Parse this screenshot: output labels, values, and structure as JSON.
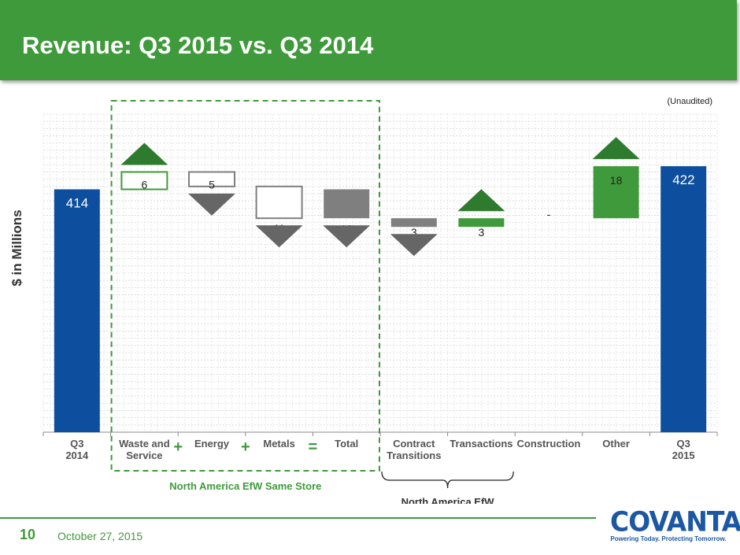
{
  "header": {
    "title": "Revenue: Q3 2015 vs. Q3 2014"
  },
  "note": "(Unaudited)",
  "footer": {
    "page_number": "10",
    "date": "October 27, 2015"
  },
  "logo": {
    "wordmark": "COVANTA",
    "tagline": "Powering Today. Protecting Tomorrow."
  },
  "colors": {
    "header_green": "#3f9a3b",
    "total_blue": "#0d4f9e",
    "increase_green": "#3f9a3b",
    "decrease_gray": "#7f7f7f",
    "arrow_up": "#2e7a2e",
    "arrow_down": "#666666"
  },
  "chart_data": {
    "type": "waterfall",
    "ylabel": "$ in Millions",
    "ylim": [
      330,
      440
    ],
    "grid": true,
    "categories": [
      "Q3\n2014",
      "Waste and\nService",
      "Energy",
      "Metals",
      "Total",
      "Contract\nTransitions",
      "Transactions",
      "Construction",
      "Other",
      "Q3\n2015"
    ],
    "bars": [
      {
        "label": "414",
        "value": 414,
        "kind": "total",
        "style": "solid-blue",
        "arrow": "none"
      },
      {
        "label": "6",
        "value": 6,
        "kind": "increase",
        "style": "outline-green",
        "arrow": "up"
      },
      {
        "label": "5",
        "value": -5,
        "kind": "decrease",
        "style": "outline-gray",
        "arrow": "down"
      },
      {
        "label": "11",
        "value": -11,
        "kind": "decrease",
        "style": "outline-gray",
        "arrow": "down"
      },
      {
        "label": "10",
        "value": -10,
        "kind": "decrease",
        "style": "solid-gray",
        "arrow": "down",
        "resets_to": 414
      },
      {
        "label": "3",
        "value": -3,
        "kind": "decrease",
        "style": "solid-gray",
        "arrow": "down"
      },
      {
        "label": "3",
        "value": 3,
        "kind": "increase",
        "style": "solid-green",
        "arrow": "up"
      },
      {
        "label": "-",
        "value": 0,
        "kind": "zero",
        "style": "none",
        "arrow": "none"
      },
      {
        "label": "18",
        "value": 18,
        "kind": "increase",
        "style": "solid-green",
        "arrow": "up"
      },
      {
        "label": "422",
        "value": 422,
        "kind": "total",
        "style": "solid-blue",
        "arrow": "none"
      }
    ],
    "operators": [
      "+",
      "+",
      "="
    ],
    "groups": [
      {
        "label": "North America EfW Same Store",
        "from": 1,
        "to": 4,
        "style": "dashed-box"
      },
      {
        "label": "North America EfW",
        "from": 5,
        "to": 6,
        "style": "brace"
      }
    ]
  }
}
